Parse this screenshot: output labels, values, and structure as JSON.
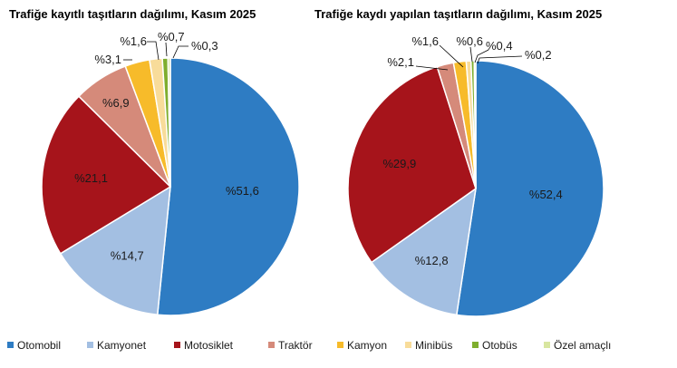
{
  "chart_data": [
    {
      "type": "pie",
      "title": "Trafiğe kayıtlı taşıtların dağılımı, Kasım 2025",
      "categories": [
        "Otomobil",
        "Kamyonet",
        "Motosiklet",
        "Traktör",
        "Kamyon",
        "Minibüs",
        "Otobüs",
        "Özel amaçlı"
      ],
      "values": [
        51.6,
        14.7,
        21.1,
        6.9,
        3.1,
        1.6,
        0.7,
        0.3
      ],
      "labels": [
        "%51,6",
        "%14,7",
        "%21,1",
        "%6,9",
        "%3,1",
        "%1,6",
        "%0,7",
        "%0,3"
      ]
    },
    {
      "type": "pie",
      "title": "Trafiğe kaydı yapılan taşıtların dağılımı, Kasım 2025",
      "categories": [
        "Otomobil",
        "Kamyonet",
        "Motosiklet",
        "Traktör",
        "Kamyon",
        "Minibüs",
        "Otobüs",
        "Özel amaçlı"
      ],
      "values": [
        52.4,
        12.8,
        29.9,
        2.1,
        1.6,
        0.6,
        0.4,
        0.2
      ],
      "labels": [
        "%52,4",
        "%12,8",
        "%29,9",
        "%2,1",
        "%1,6",
        "%0,6",
        "%0,4",
        "%0,2"
      ]
    }
  ],
  "legend": {
    "placement": "bottom",
    "items": [
      "Otomobil",
      "Kamyonet",
      "Motosiklet",
      "Traktör",
      "Kamyon",
      "Minibüs",
      "Otobüs",
      "Özel amaçlı"
    ]
  },
  "colors": [
    "#2e7cc3",
    "#a3bfe2",
    "#a6141b",
    "#d58a7a",
    "#f7bb2a",
    "#f8dc9a",
    "#7fae2e",
    "#d8e6a0"
  ]
}
